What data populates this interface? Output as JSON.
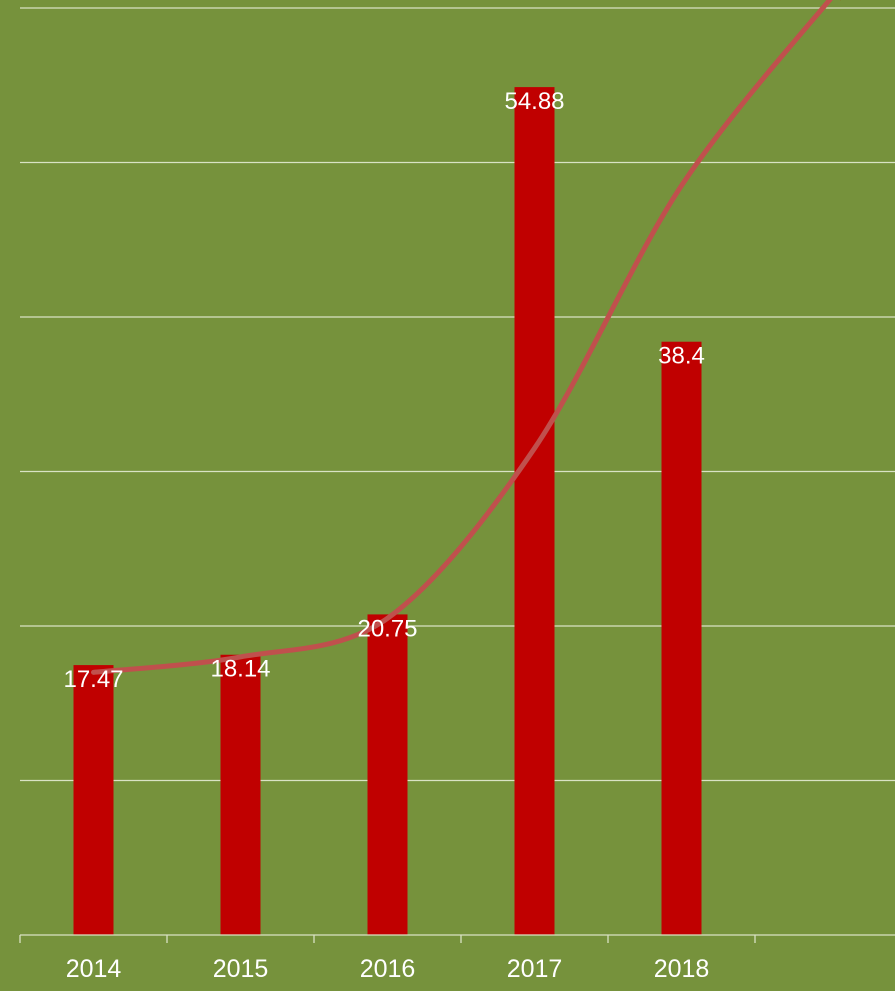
{
  "chart_data": {
    "type": "bar",
    "categories": [
      "2014",
      "2015",
      "2016",
      "2017",
      "2018"
    ],
    "values": [
      17.47,
      18.14,
      20.75,
      54.88,
      38.4
    ],
    "data_labels": [
      "17.47",
      "18.14",
      "20.75",
      "54.88",
      "38.4"
    ],
    "trendline": {
      "type": "smoothed-line",
      "arrow_end": true,
      "points": [
        {
          "x": "2014",
          "y": 17.0
        },
        {
          "x": "2015",
          "y": 18.0
        },
        {
          "x": "2016",
          "y": 20.5
        },
        {
          "x": "2017",
          "y": 31.5
        },
        {
          "x": "2018",
          "y": 48.5
        }
      ]
    },
    "title": "",
    "xlabel": "",
    "ylabel": "",
    "ylim": [
      0,
      60
    ],
    "y_gridlines": [
      10,
      20,
      30,
      40,
      50,
      60
    ],
    "grid": true,
    "legend": "none",
    "colors": {
      "background": "#76923c",
      "bar": "#c00000",
      "trendline": "#c0504d",
      "arrowhead": "#a04b0e",
      "gridline": "#d9e2c4",
      "text": "#ffffff"
    }
  }
}
